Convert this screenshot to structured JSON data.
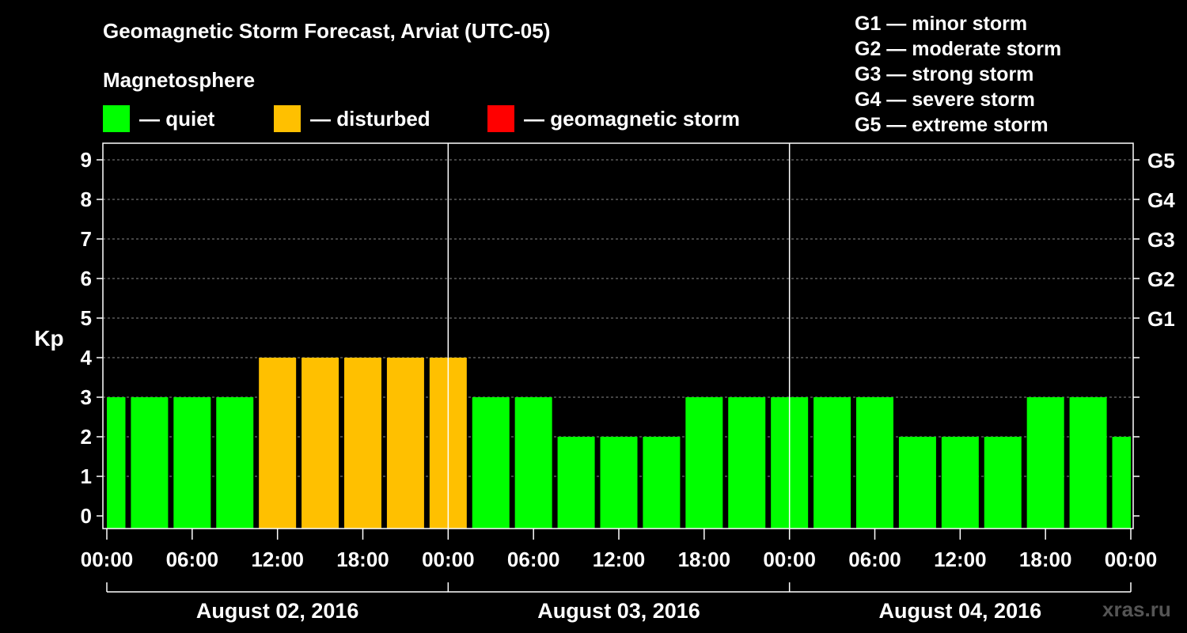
{
  "chart_data": {
    "type": "bar",
    "title": "Geomagnetic Storm Forecast, Arviat (UTC-05)",
    "subtitle": "Magnetosphere",
    "ylabel": "Kp",
    "ylim": [
      0,
      9
    ],
    "yticks": [
      "0",
      "1",
      "2",
      "3",
      "4",
      "5",
      "6",
      "7",
      "8",
      "9"
    ],
    "right_ticks": [
      {
        "kp": 5,
        "label": "G1"
      },
      {
        "kp": 6,
        "label": "G2"
      },
      {
        "kp": 7,
        "label": "G3"
      },
      {
        "kp": 8,
        "label": "G4"
      },
      {
        "kp": 9,
        "label": "G5"
      }
    ],
    "xticks": [
      "00:00",
      "06:00",
      "12:00",
      "18:00",
      "00:00",
      "06:00",
      "12:00",
      "18:00",
      "00:00",
      "06:00",
      "12:00",
      "18:00",
      "00:00"
    ],
    "days": [
      "August 02, 2016",
      "August 03, 2016",
      "August 04, 2016"
    ],
    "interval_hours": 3,
    "values": [
      3,
      3,
      3,
      3,
      4,
      4,
      4,
      4,
      4,
      3,
      3,
      2,
      2,
      2,
      3,
      3,
      3,
      3,
      3,
      2,
      2,
      2,
      3,
      3,
      2
    ],
    "colors": {
      "quiet": "#00ff00",
      "disturbed": "#ffc000",
      "storm": "#ff0000"
    },
    "legend": [
      {
        "label": "— quiet",
        "color": "#00ff00"
      },
      {
        "label": "— disturbed",
        "color": "#ffc000"
      },
      {
        "label": "— geomagnetic storm",
        "color": "#ff0000"
      }
    ],
    "storm_levels": [
      "G1 — minor storm",
      "G2 — moderate storm",
      "G3 — strong storm",
      "G4 — severe storm",
      "G5 — extreme storm"
    ],
    "grid": true,
    "legend_position": "top"
  },
  "watermark": "xras.ru"
}
